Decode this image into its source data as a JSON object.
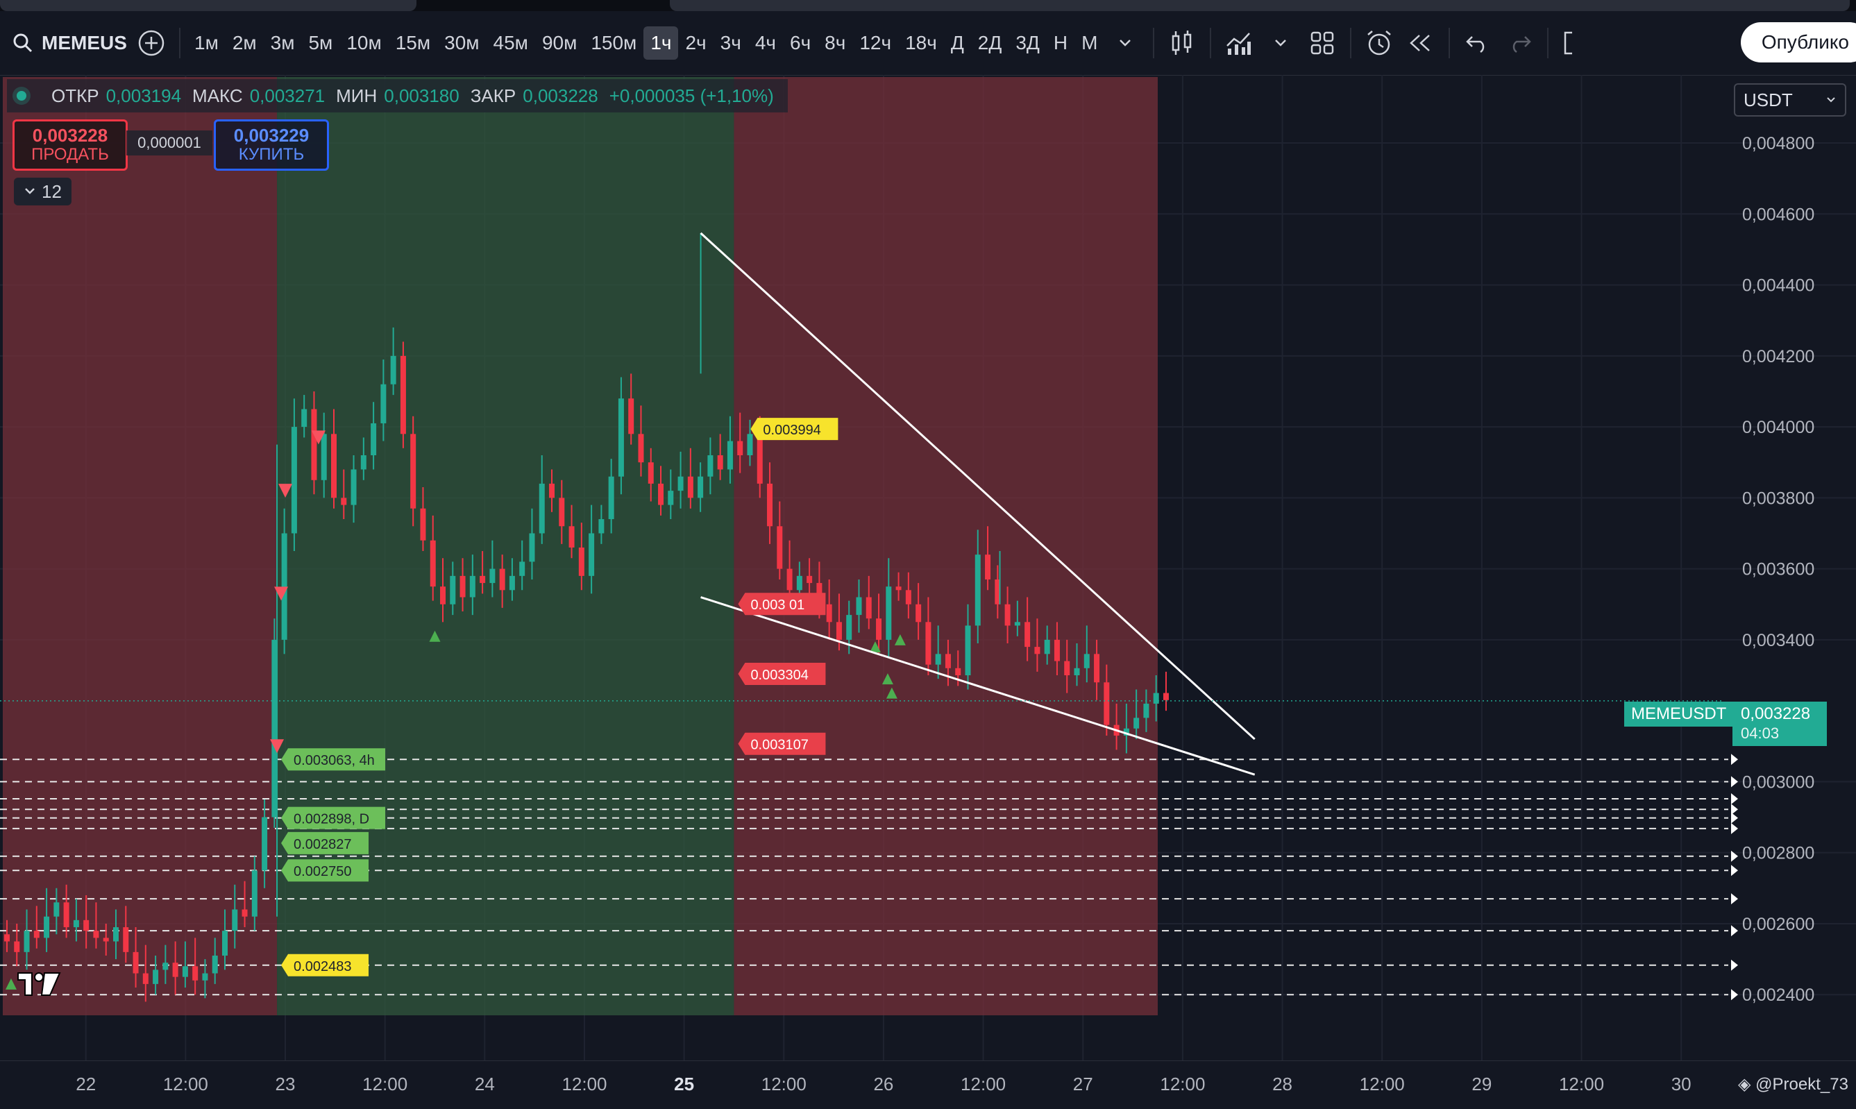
{
  "toolbar": {
    "symbol": "MEMEUS",
    "timeframes": [
      "1м",
      "2м",
      "3м",
      "5м",
      "10м",
      "15м",
      "30м",
      "45м",
      "90м",
      "150м",
      "1ч",
      "2ч",
      "3ч",
      "4ч",
      "6ч",
      "8ч",
      "12ч",
      "18ч",
      "Д",
      "2Д",
      "3Д",
      "Н",
      "М"
    ],
    "active_timeframe": "1ч",
    "publish_label": "Опублико"
  },
  "legend": {
    "open_label": "ОТКР",
    "open": "0,003194",
    "high_label": "МАКС",
    "high": "0,003271",
    "low_label": "МИН",
    "low": "0,003180",
    "close_label": "ЗАКР",
    "close": "0,003228",
    "change": "+0,000035 (+1,10%)"
  },
  "trade": {
    "sell_price": "0,003228",
    "sell_label": "ПРОДАТЬ",
    "spread": "0,000001",
    "buy_price": "0,003229",
    "buy_label": "КУПИТЬ"
  },
  "collapsed_count": "12",
  "currency": "USDT",
  "last_price": {
    "symbol": "MEMEUSDT",
    "price": "0,003228",
    "countdown": "04:03"
  },
  "watermark": "@Proekt_73",
  "colors": {
    "up": "#22ab94",
    "down": "#f23645",
    "red_zone": "#5a2e37",
    "green_zone": "#2e4a3a",
    "bg": "#131722"
  },
  "chart_data": {
    "type": "candlestick",
    "y_ticks": [
      "0,004800",
      "0,004600",
      "0,004400",
      "0,004200",
      "0,004000",
      "0,003800",
      "0,003600",
      "0,003400",
      "0,003000",
      "0,002800",
      "0,002600",
      "0,002400"
    ],
    "y_tick_values": [
      0.0048,
      0.0046,
      0.0044,
      0.0042,
      0.004,
      0.0038,
      0.0036,
      0.0034,
      0.003,
      0.0028,
      0.0026,
      0.0024
    ],
    "x_ticks": [
      "22",
      "12:00",
      "23",
      "12:00",
      "24",
      "12:00",
      "25",
      "12:00",
      "26",
      "12:00",
      "27",
      "12:00",
      "28",
      "12:00",
      "29",
      "12:00",
      "30"
    ],
    "x_bold": [
      "25"
    ],
    "price_labels": [
      {
        "text": "0.003994",
        "value": 0.003994,
        "kind": "yellow"
      },
      {
        "text": "0.003 01",
        "value": 0.003501,
        "kind": "red"
      },
      {
        "text": "0.003304",
        "value": 0.003304,
        "kind": "red"
      },
      {
        "text": "0.003107",
        "value": 0.003107,
        "kind": "red"
      },
      {
        "text": "0.003063, 4h",
        "value": 0.003063,
        "kind": "green"
      },
      {
        "text": "0.002898, D",
        "value": 0.002898,
        "kind": "green"
      },
      {
        "text": "0.002827",
        "value": 0.002827,
        "kind": "green"
      },
      {
        "text": "0.002750",
        "value": 0.00275,
        "kind": "green"
      },
      {
        "text": "0.002483",
        "value": 0.002483,
        "kind": "yellow"
      }
    ],
    "levels": [
      0.003063,
      0.003,
      0.002952,
      0.002922,
      0.002898,
      0.002868,
      0.00279,
      0.00275,
      0.00267,
      0.00258,
      0.002483,
      0.0024
    ],
    "trend_lines": [
      {
        "from": [
          "25 02:00",
          0.004546
        ],
        "to": [
          "27 19:00",
          0.00312
        ]
      },
      {
        "from": [
          "25 02:00",
          0.00352
        ],
        "to": [
          "27 19:00",
          0.00302
        ]
      }
    ],
    "zones": [
      {
        "from": "21 14:00",
        "to": "22 23:00",
        "color": "red"
      },
      {
        "from": "22 23:00",
        "to": "25 06:00",
        "color": "green"
      },
      {
        "from": "25 06:00",
        "to": "27 09:00",
        "color": "red"
      }
    ],
    "x_range": [
      "21 14:00",
      "30 06:00"
    ],
    "y_range": [
      0.00233,
      0.00498
    ],
    "candles_close_path": [
      0.00255,
      0.00252,
      0.00258,
      0.00256,
      0.00262,
      0.00266,
      0.00259,
      0.00261,
      0.00258,
      0.00256,
      0.00255,
      0.00259,
      0.00252,
      0.00246,
      0.00243,
      0.00247,
      0.00249,
      0.00245,
      0.00248,
      0.00244,
      0.00246,
      0.00251,
      0.00258,
      0.00264,
      0.00262,
      0.00275,
      0.0029,
      0.0034,
      0.0037,
      0.004,
      0.00405,
      0.00385,
      0.00398,
      0.0038,
      0.00378,
      0.00388,
      0.00392,
      0.00401,
      0.00412,
      0.0042,
      0.00398,
      0.00377,
      0.00368,
      0.00355,
      0.0035,
      0.00358,
      0.00352,
      0.00358,
      0.00356,
      0.0036,
      0.00354,
      0.00358,
      0.00362,
      0.0037,
      0.00384,
      0.0038,
      0.00372,
      0.00366,
      0.00358,
      0.0037,
      0.00374,
      0.00386,
      0.00408,
      0.00398,
      0.0039,
      0.00384,
      0.00378,
      0.00382,
      0.00386,
      0.0038,
      0.00386,
      0.00392,
      0.00388,
      0.00396,
      0.00392,
      0.00398,
      0.00384,
      0.00372,
      0.0036,
      0.00354,
      0.00358,
      0.00356,
      0.0035,
      0.00345,
      0.0034,
      0.00347,
      0.00352,
      0.00346,
      0.0034,
      0.00355,
      0.00354,
      0.0035,
      0.00345,
      0.00333,
      0.00336,
      0.00332,
      0.0033,
      0.00344,
      0.00364,
      0.00357,
      0.0035,
      0.00344,
      0.00345,
      0.00338,
      0.00336,
      0.0034,
      0.00334,
      0.0033,
      0.00332,
      0.00336,
      0.00328,
      0.00316,
      0.00313,
      0.00315,
      0.00318,
      0.00322,
      0.00325,
      0.00323
    ]
  }
}
